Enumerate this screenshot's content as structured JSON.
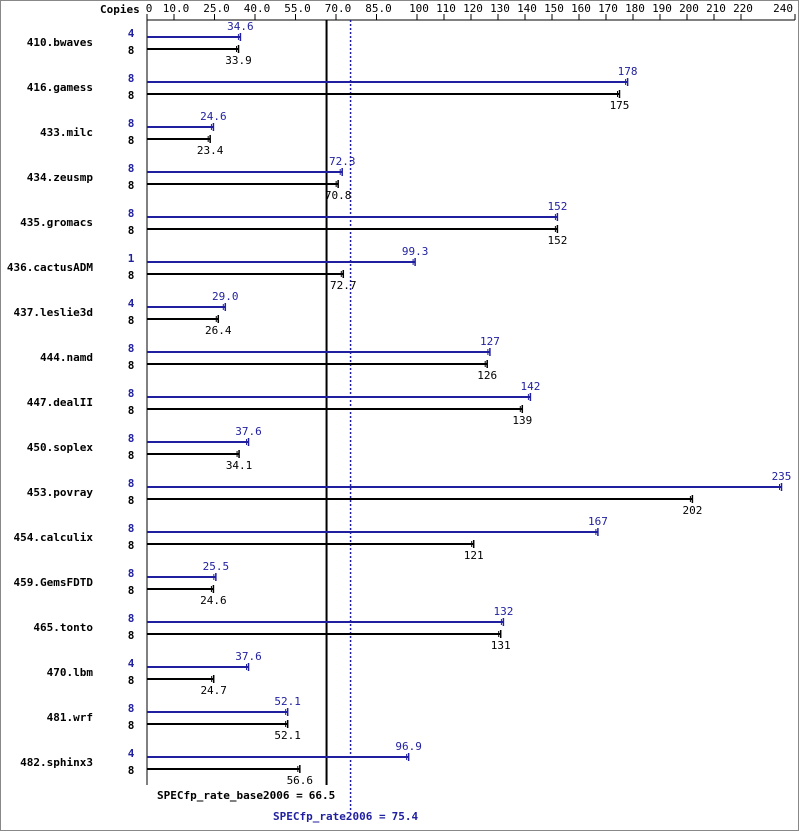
{
  "chart_data": {
    "type": "bar",
    "copies_label": "Copies",
    "categories": [
      "410.bwaves",
      "416.gamess",
      "433.milc",
      "434.zeusmp",
      "435.gromacs",
      "436.cactusADM",
      "437.leslie3d",
      "444.namd",
      "447.dealII",
      "450.soplex",
      "453.povray",
      "454.calculix",
      "459.GemsFDTD",
      "465.tonto",
      "470.lbm",
      "481.wrf",
      "482.sphinx3"
    ],
    "series": [
      {
        "color": "#1f1f9f",
        "copies": [
          4,
          8,
          8,
          8,
          8,
          1,
          4,
          8,
          8,
          8,
          8,
          8,
          8,
          8,
          4,
          8,
          4
        ],
        "values": [
          34.6,
          178,
          24.6,
          72.3,
          152,
          99.3,
          29.0,
          127,
          142,
          37.6,
          235,
          167,
          25.5,
          132,
          37.6,
          52.1,
          96.9
        ],
        "value_labels": [
          "34.6",
          "178",
          "24.6",
          "72.3",
          "152",
          "99.3",
          "29.0",
          "127",
          "142",
          "37.6",
          "235",
          "167",
          "25.5",
          "132",
          "37.6",
          "52.1",
          "96.9"
        ]
      },
      {
        "color": "#000000",
        "copies": [
          8,
          8,
          8,
          8,
          8,
          8,
          8,
          8,
          8,
          8,
          8,
          8,
          8,
          8,
          8,
          8,
          8
        ],
        "values": [
          33.9,
          175,
          23.4,
          70.8,
          152,
          72.7,
          26.4,
          126,
          139,
          34.1,
          202,
          121,
          24.6,
          131,
          24.7,
          52.1,
          56.6
        ],
        "value_labels": [
          "33.9",
          "175",
          "23.4",
          "70.8",
          "152",
          "72.7",
          "26.4",
          "126",
          "139",
          "34.1",
          "202",
          "121",
          "24.6",
          "131",
          "24.7",
          "52.1",
          "56.6"
        ]
      }
    ],
    "reference_lines": [
      {
        "label": "SPECfp_rate_base2006 =",
        "value": 66.5,
        "color": "#000000",
        "style": "solid"
      },
      {
        "label": "SPECfp_rate2006 =",
        "value": 75.4,
        "color": "#1f1f9f",
        "style": "dotted"
      }
    ],
    "xlim": [
      0,
      240
    ],
    "xticks": [
      0,
      {
        "value": 10,
        "label": "10.0"
      },
      {
        "value": 25,
        "label": "25.0"
      },
      {
        "value": 40,
        "label": "40.0"
      },
      {
        "value": 55,
        "label": "55.0"
      },
      {
        "value": 70,
        "label": "70.0"
      },
      {
        "value": 85,
        "label": "85.0"
      },
      100,
      110,
      120,
      130,
      140,
      150,
      160,
      170,
      180,
      190,
      200,
      210,
      220,
      240
    ]
  }
}
